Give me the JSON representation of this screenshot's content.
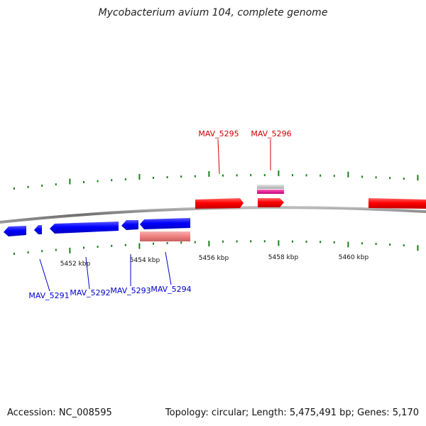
{
  "title": "Mycobacterium avium 104, complete genome",
  "footer": {
    "accession": "Accession: NC_008595",
    "summary": "Topology: circular; Length: 5,475,491 bp; Genes: 5,170"
  },
  "colors": {
    "forward_gene": "#ff0000",
    "reverse_gene": "#0000ff",
    "reverse_secondary": "#f08080",
    "forward_grey": "#c8c8c8",
    "forward_magenta": "#e6008c",
    "tick": "#1a7f1a",
    "backbone": "#7a7a7a"
  },
  "axis": {
    "unit": "kbp",
    "tick_labels": [
      "5452 kbp",
      "5454 kbp",
      "5456 kbp",
      "5458 kbp",
      "5460 kbp"
    ]
  },
  "genes": {
    "forward_labels": [
      {
        "id": "MAV_5295",
        "label": "MAV_5295"
      },
      {
        "id": "MAV_5296",
        "label": "MAV_5296"
      }
    ],
    "reverse_labels": [
      {
        "id": "MAV_5291",
        "label": "MAV_5291"
      },
      {
        "id": "MAV_5292",
        "label": "MAV_5292"
      },
      {
        "id": "MAV_5293",
        "label": "MAV_5293"
      },
      {
        "id": "MAV_5294",
        "label": "MAV_5294"
      }
    ]
  }
}
